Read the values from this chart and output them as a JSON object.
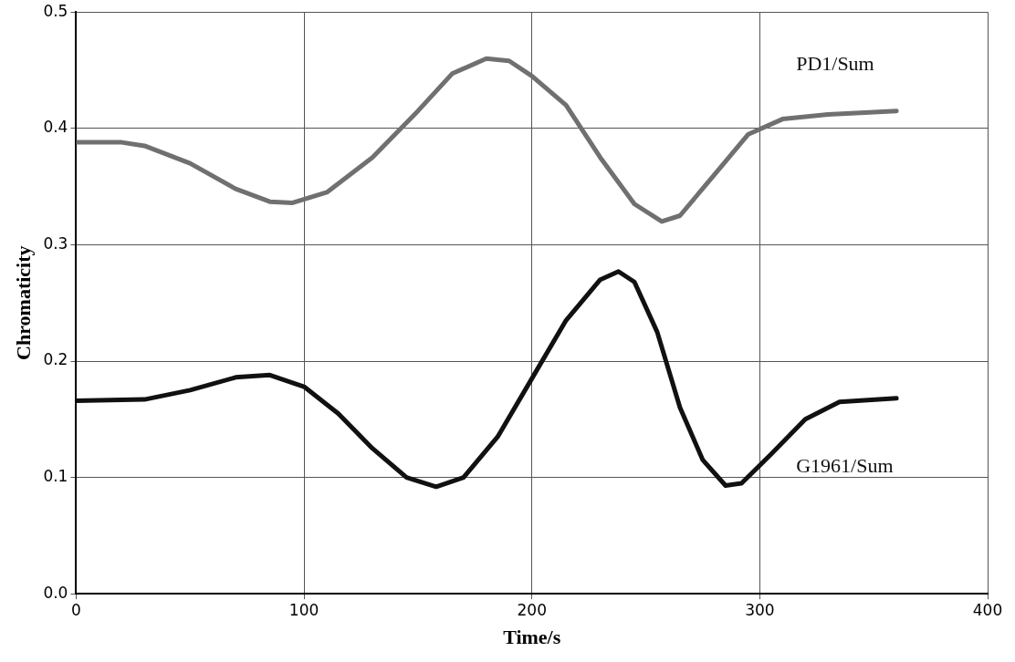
{
  "chart_data": {
    "type": "line",
    "xlabel": "Time/s",
    "ylabel": "Chromaticity",
    "xlim": [
      0,
      400
    ],
    "xticks": [
      0,
      100,
      200,
      300,
      400
    ],
    "ylim": [
      0,
      0.5
    ],
    "yticks": [
      {
        "value": 0,
        "label": "0.0"
      },
      0.1,
      0.2,
      0.3,
      0.4,
      0.5
    ],
    "grid": true,
    "marker": "none",
    "line_style": "solid",
    "series": [
      {
        "name": "PD1/Sum",
        "color": "#707070",
        "x": [
          0,
          20,
          30,
          50,
          70,
          85,
          95,
          110,
          130,
          150,
          165,
          180,
          190,
          200,
          215,
          230,
          245,
          257,
          265,
          280,
          295,
          310,
          330,
          360
        ],
        "values": [
          0.388,
          0.388,
          0.385,
          0.37,
          0.348,
          0.337,
          0.336,
          0.345,
          0.375,
          0.415,
          0.447,
          0.46,
          0.458,
          0.445,
          0.42,
          0.375,
          0.335,
          0.32,
          0.325,
          0.36,
          0.395,
          0.408,
          0.412,
          0.415
        ]
      },
      {
        "name": "G1961/Sum",
        "color": "#111111",
        "x": [
          0,
          30,
          50,
          70,
          85,
          100,
          115,
          130,
          145,
          158,
          170,
          185,
          200,
          215,
          230,
          238,
          245,
          255,
          265,
          275,
          285,
          292,
          305,
          320,
          335,
          360
        ],
        "values": [
          0.166,
          0.167,
          0.175,
          0.186,
          0.188,
          0.178,
          0.155,
          0.125,
          0.1,
          0.092,
          0.1,
          0.135,
          0.185,
          0.235,
          0.27,
          0.277,
          0.268,
          0.225,
          0.16,
          0.115,
          0.093,
          0.095,
          0.12,
          0.15,
          0.165,
          0.168
        ]
      }
    ]
  }
}
